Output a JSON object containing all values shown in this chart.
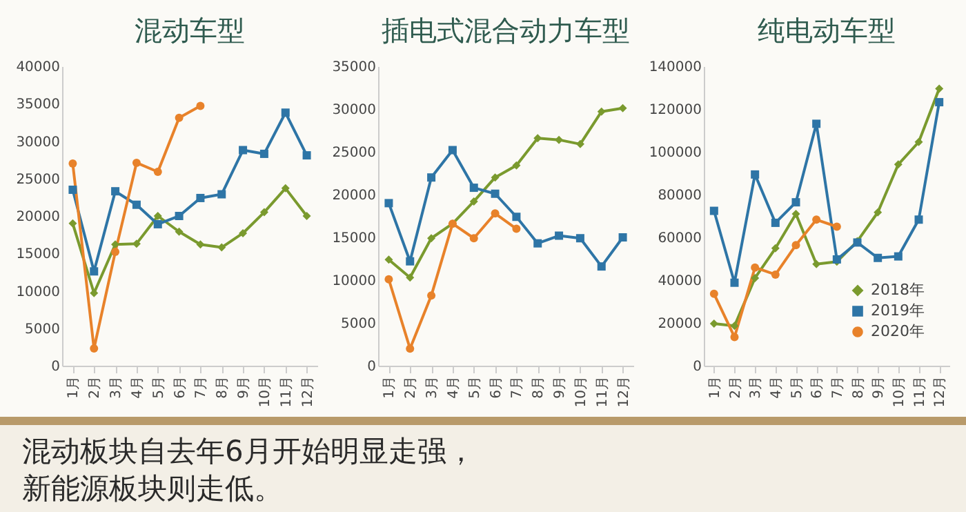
{
  "chart_data": [
    {
      "type": "line",
      "title": "混动车型",
      "categories": [
        "1月",
        "2月",
        "3月",
        "4月",
        "5月",
        "6月",
        "7月",
        "8月",
        "9月",
        "10月",
        "11月",
        "12月"
      ],
      "ylim": [
        0,
        40000
      ],
      "yticks": [
        0,
        5000,
        10000,
        15000,
        20000,
        25000,
        30000,
        35000,
        40000
      ],
      "grid": false,
      "legend": false,
      "series": [
        {
          "color": "#7a9a2e",
          "marker": "diamond",
          "values": [
            19000,
            9700,
            16200,
            16300,
            20000,
            17900,
            16200,
            15800,
            17700,
            20500,
            23700,
            20000
          ]
        },
        {
          "color": "#2e75a6",
          "marker": "square",
          "values": [
            23500,
            12600,
            23300,
            21500,
            18900,
            20000,
            22400,
            22900,
            28800,
            28300,
            33800,
            28100
          ]
        },
        {
          "color": "#e8822a",
          "marker": "circle",
          "values": [
            27000,
            2300,
            15200,
            27100,
            25900,
            33100,
            34700,
            null,
            null,
            null,
            null,
            null
          ]
        }
      ]
    },
    {
      "type": "line",
      "title": "插电式混合动力车型",
      "categories": [
        "1月",
        "2月",
        "3月",
        "4月",
        "5月",
        "6月",
        "7月",
        "8月",
        "9月",
        "10月",
        "11月",
        "12月"
      ],
      "ylim": [
        0,
        35000
      ],
      "yticks": [
        0,
        5000,
        10000,
        15000,
        20000,
        25000,
        30000,
        35000
      ],
      "grid": false,
      "legend": false,
      "series": [
        {
          "color": "#7a9a2e",
          "marker": "diamond",
          "values": [
            12400,
            10300,
            14900,
            16600,
            19200,
            22000,
            23400,
            26600,
            26400,
            25900,
            29700,
            30100
          ]
        },
        {
          "color": "#2e75a6",
          "marker": "square",
          "values": [
            19000,
            12200,
            22000,
            25200,
            20800,
            20100,
            17400,
            14300,
            15200,
            14900,
            11600,
            15000
          ]
        },
        {
          "color": "#e8822a",
          "marker": "circle",
          "values": [
            10100,
            2000,
            8200,
            16600,
            14900,
            17800,
            16000,
            null,
            null,
            null,
            null,
            null
          ]
        }
      ]
    },
    {
      "type": "line",
      "title": "纯电动车型",
      "categories": [
        "1月",
        "2月",
        "3月",
        "4月",
        "5月",
        "6月",
        "7月",
        "8月",
        "9月",
        "10月",
        "11月",
        "12月"
      ],
      "ylim": [
        0,
        140000
      ],
      "yticks": [
        0,
        20000,
        40000,
        60000,
        80000,
        100000,
        120000,
        140000
      ],
      "grid": false,
      "legend": "bottom right",
      "series": [
        {
          "name": "2018年",
          "color": "#7a9a2e",
          "marker": "diamond",
          "values": [
            19700,
            18600,
            41000,
            54900,
            71000,
            47500,
            48600,
            58200,
            71700,
            94100,
            104600,
            129500
          ]
        },
        {
          "name": "2019年",
          "color": "#2e75a6",
          "marker": "square",
          "values": [
            72400,
            38800,
            89400,
            66800,
            76400,
            113100,
            49700,
            57600,
            50400,
            51100,
            68300,
            123200
          ]
        },
        {
          "name": "2020年",
          "color": "#e8822a",
          "marker": "circle",
          "values": [
            33600,
            13400,
            45900,
            42600,
            56400,
            68300,
            65000,
            null,
            null,
            null,
            null,
            null
          ]
        }
      ]
    },
    {
      "type": "other",
      "annotations": [
        "混动板块自去年6月开始明显走强，",
        "新能源板块则走低。"
      ]
    }
  ]
}
